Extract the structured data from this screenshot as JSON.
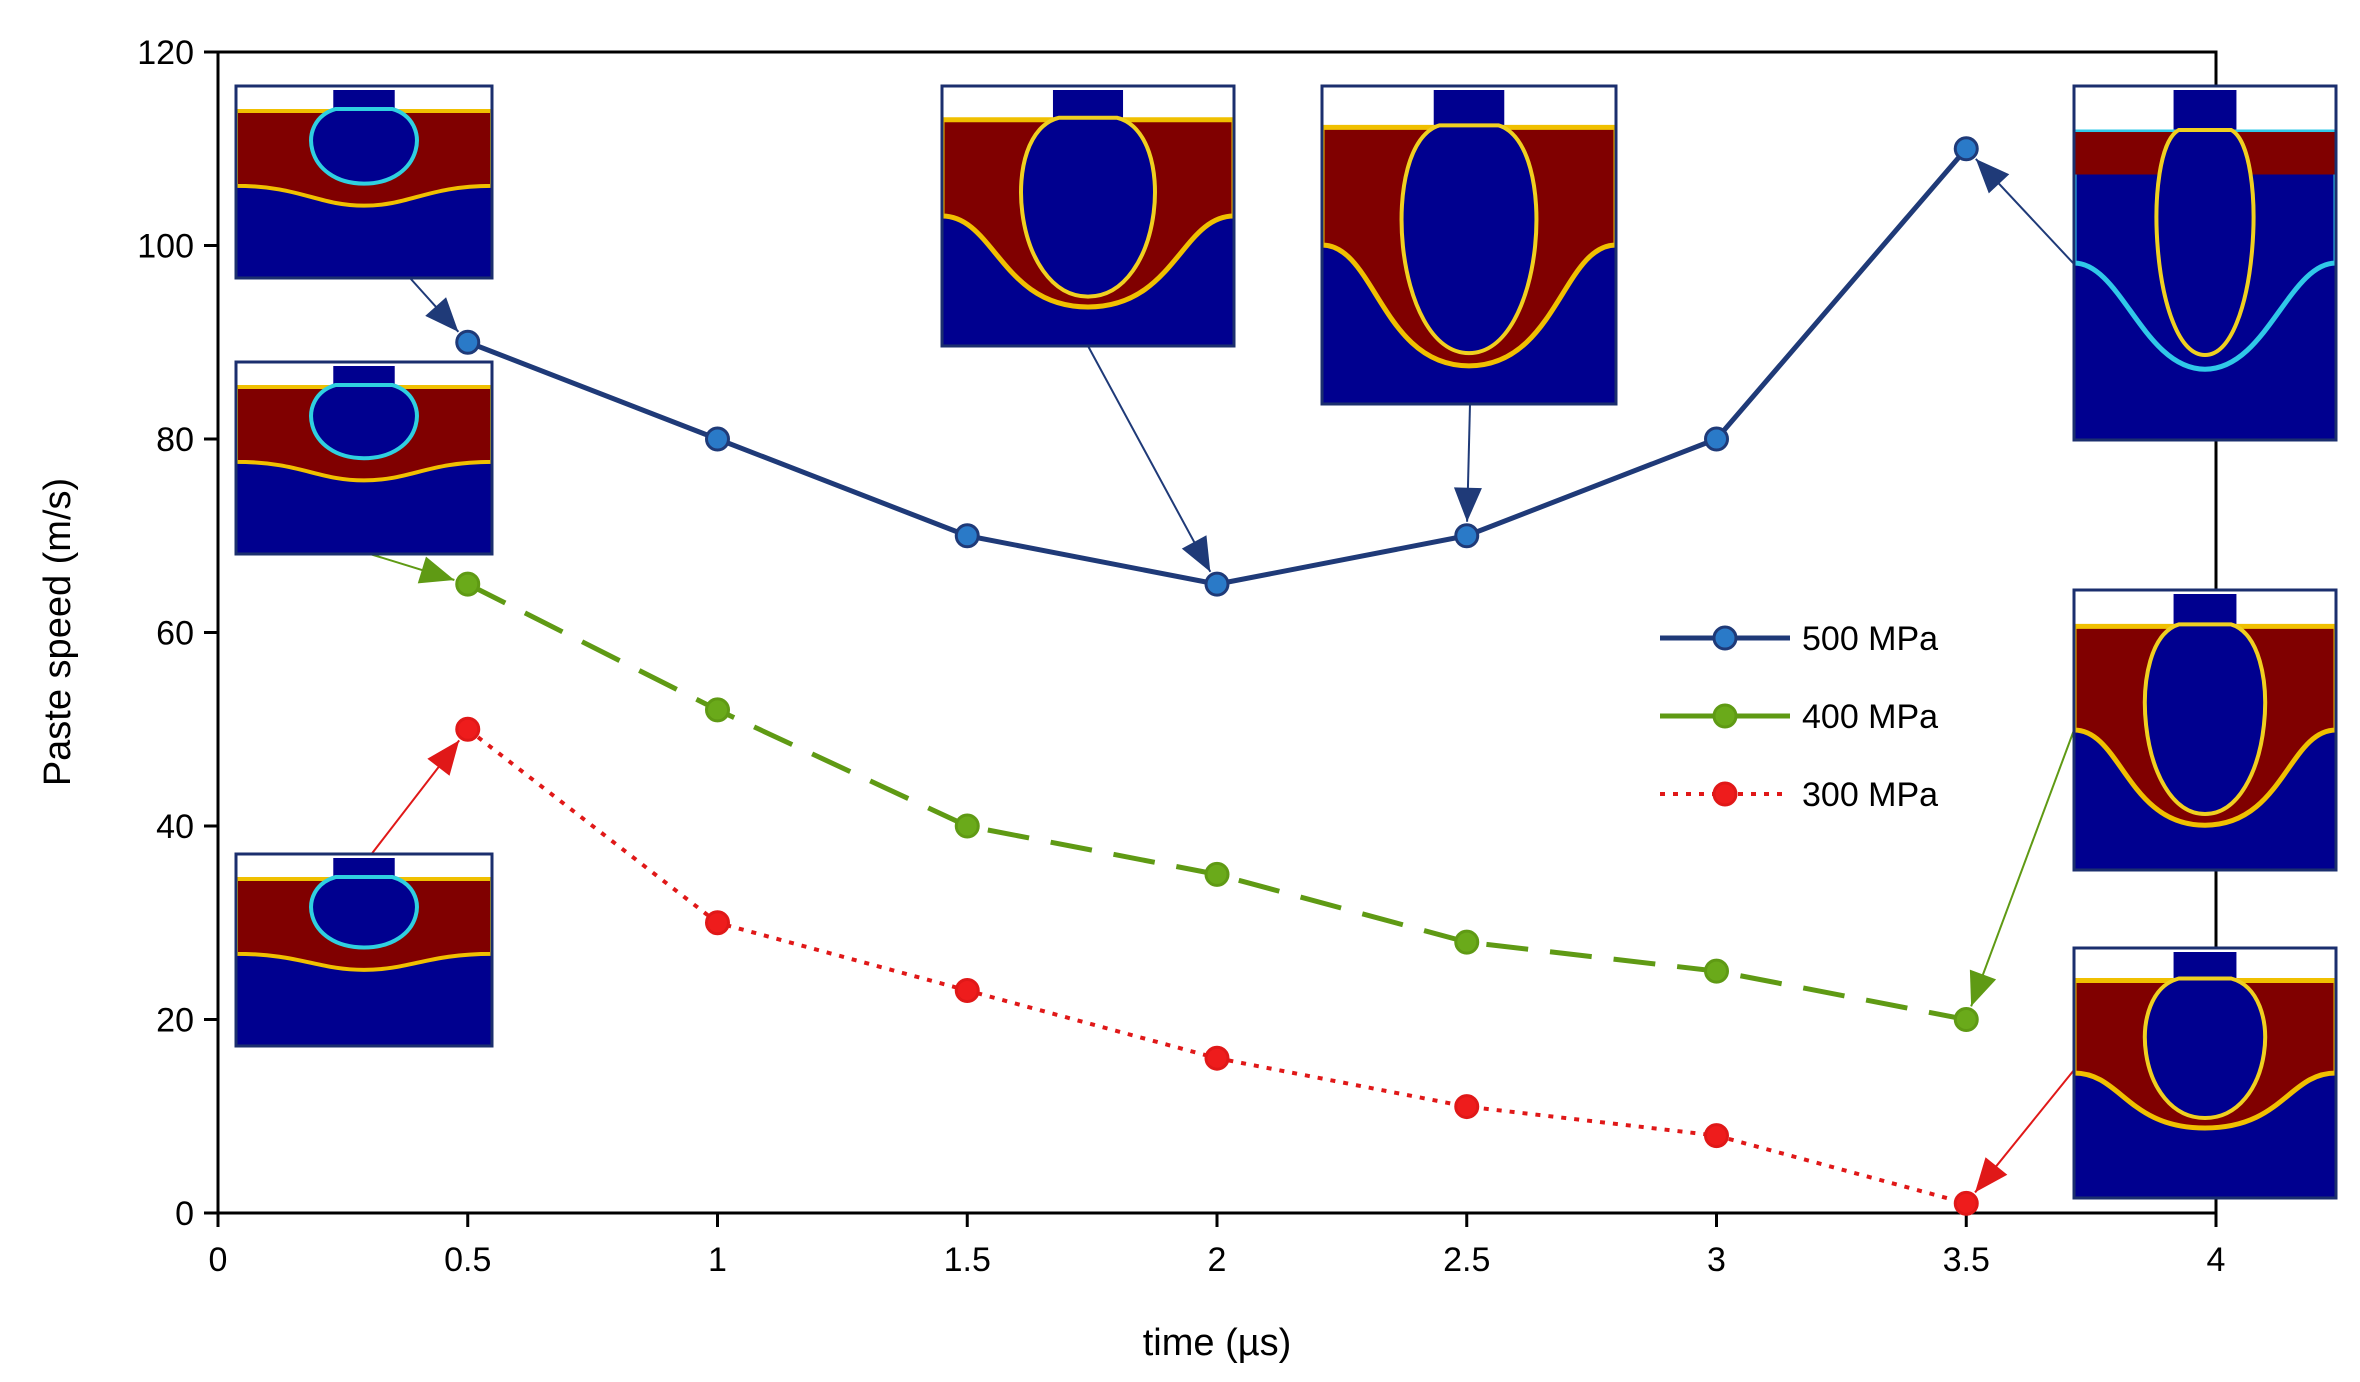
{
  "chart_data": {
    "type": "line",
    "title": "",
    "xlabel": "time (µs)",
    "ylabel": "Paste speed (m/s)",
    "xlim": [
      0,
      4
    ],
    "ylim": [
      0,
      120
    ],
    "x_ticks": [
      "0",
      "0.5",
      "1",
      "1.5",
      "2",
      "2.5",
      "3",
      "3.5",
      "4"
    ],
    "y_ticks": [
      "0",
      "20",
      "40",
      "60",
      "80",
      "100",
      "120"
    ],
    "grid": false,
    "legend_position": "right-center",
    "x": [
      0.5,
      1,
      1.5,
      2,
      2.5,
      3,
      3.5
    ],
    "series": [
      {
        "name": "500 MPa",
        "values": [
          90,
          80,
          70,
          65,
          70,
          80,
          110
        ],
        "line_color": "#1f3a78",
        "marker_color": "#2a7ac8",
        "style": "solid"
      },
      {
        "name": "400 MPa",
        "values": [
          65,
          52,
          40,
          35,
          28,
          25,
          20
        ],
        "line_color": "#5f9a14",
        "marker_color": "#6aaa1a",
        "style": "dashed"
      },
      {
        "name": "300 MPa",
        "values": [
          50,
          30,
          23,
          16,
          11,
          8,
          1
        ],
        "line_color": "#e01818",
        "marker_color": "#ee1c1c",
        "style": "dotted"
      }
    ],
    "insets": [
      {
        "name": "inset-500-t0.5",
        "shape": "bulb-shallow",
        "depth": 0.62,
        "points_to": {
          "series": 0,
          "x": 0.5,
          "y": 90
        },
        "arrow_color": "#1f3a78"
      },
      {
        "name": "inset-400-t0.5",
        "shape": "bulb-shallow",
        "depth": 0.58,
        "points_to": {
          "series": 1,
          "x": 0.5,
          "y": 65
        },
        "arrow_color": "#5f9a14"
      },
      {
        "name": "inset-300-t0.5",
        "shape": "bulb-shallow",
        "depth": 0.5,
        "points_to": {
          "series": 2,
          "x": 0.5,
          "y": 50
        },
        "arrow_color": "#e01818"
      },
      {
        "name": "inset-500-t2",
        "shape": "u-deep",
        "depth": 0.85,
        "points_to": {
          "series": 0,
          "x": 2,
          "y": 65
        },
        "arrow_color": "#1f3a78"
      },
      {
        "name": "inset-500-t2.5",
        "shape": "u-deep",
        "depth": 0.88,
        "points_to": {
          "series": 0,
          "x": 2.5,
          "y": 70
        },
        "arrow_color": "#1f3a78"
      },
      {
        "name": "inset-500-t3.5",
        "shape": "v-broken",
        "depth": 0.8,
        "points_to": {
          "series": 0,
          "x": 3.5,
          "y": 110
        },
        "arrow_color": "#1f3a78"
      },
      {
        "name": "inset-400-t3.5",
        "shape": "u-deep",
        "depth": 0.84,
        "points_to": {
          "series": 1,
          "x": 3.5,
          "y": 20
        },
        "arrow_color": "#5f9a14"
      },
      {
        "name": "inset-300-t3.5",
        "shape": "u-medium",
        "depth": 0.72,
        "points_to": {
          "series": 2,
          "x": 3.5,
          "y": 1
        },
        "arrow_color": "#e01818"
      }
    ]
  }
}
